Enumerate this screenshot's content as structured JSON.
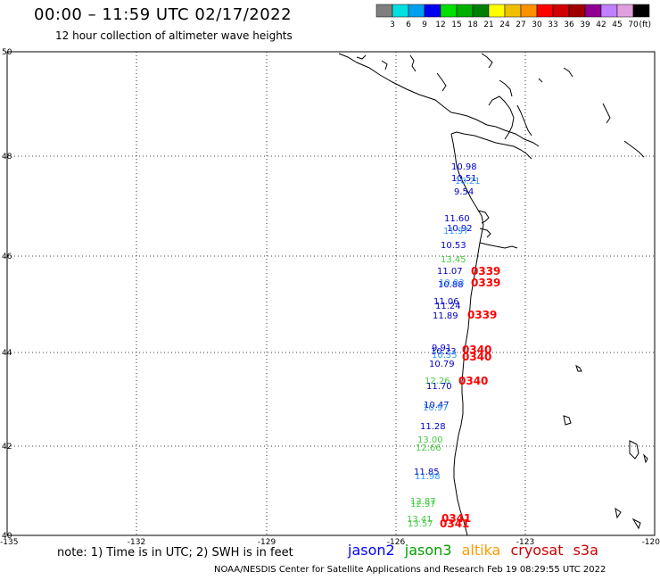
{
  "header": {
    "title": "00:00 – 11:59 UTC 02/17/2022",
    "subtitle": "12 hour collection of altimeter wave heights"
  },
  "legend": {
    "colors": [
      "#808080",
      "#00e0e0",
      "#00a0f0",
      "#0000f0",
      "#00e000",
      "#00b000",
      "#008000",
      "#ffff00",
      "#f0c000",
      "#ff9000",
      "#ff0000",
      "#d00000",
      "#a00000",
      "#900090",
      "#c080ff",
      "#e0a0e0",
      "#000000"
    ],
    "labels": [
      "3",
      "6",
      "9",
      "12",
      "15",
      "18",
      "21",
      "24",
      "27",
      "30",
      "33",
      "36",
      "39",
      "42",
      "45",
      "70"
    ],
    "unit": "(ft)"
  },
  "axes": {
    "lat_labels": [
      "50",
      "48",
      "46",
      "44",
      "42",
      "40"
    ],
    "lon_labels": [
      "-135",
      "-132",
      "-129",
      "-126",
      "-123",
      "-120"
    ]
  },
  "observations": [
    {
      "text": "10.98",
      "color": "#0000cc"
    },
    {
      "text": "10.51",
      "color": "#0000cc"
    },
    {
      "text": "10.21",
      "color": "#3399ff"
    },
    {
      "text": "9.54",
      "color": "#0000cc"
    },
    {
      "text": "11.60",
      "color": "#0000cc"
    },
    {
      "text": "10.92",
      "color": "#0000cc"
    },
    {
      "text": "11.97",
      "color": "#3399ff"
    },
    {
      "text": "10.53",
      "color": "#0000cc"
    },
    {
      "text": "13.45",
      "color": "#44cc44"
    },
    {
      "text": "11.07",
      "color": "#0000cc"
    },
    {
      "text": "10.88",
      "color": "#0000cc"
    },
    {
      "text": "10.83",
      "color": "#3399ff"
    },
    {
      "text": "11.06",
      "color": "#0000cc"
    },
    {
      "text": "11.24",
      "color": "#0000cc"
    },
    {
      "text": "11.89",
      "color": "#0000cc"
    },
    {
      "text": "9.91",
      "color": "#0000cc"
    },
    {
      "text": "10.23",
      "color": "#0000cc"
    },
    {
      "text": "10.35",
      "color": "#3399ff"
    },
    {
      "text": "10.79",
      "color": "#0000cc"
    },
    {
      "text": "12.26",
      "color": "#44cc44"
    },
    {
      "text": "11.70",
      "color": "#0000cc"
    },
    {
      "text": "10.47",
      "color": "#0000cc"
    },
    {
      "text": "10.97",
      "color": "#3399ff"
    },
    {
      "text": "11.28",
      "color": "#0000cc"
    },
    {
      "text": "13.00",
      "color": "#44cc44"
    },
    {
      "text": "12.66",
      "color": "#44cc44"
    },
    {
      "text": "11.85",
      "color": "#0000cc"
    },
    {
      "text": "11.98",
      "color": "#3399ff"
    },
    {
      "text": "12.87",
      "color": "#44cc44"
    },
    {
      "text": "12.97",
      "color": "#44cc44"
    },
    {
      "text": "13.41",
      "color": "#44cc44"
    },
    {
      "text": "13.57",
      "color": "#44cc44"
    },
    {
      "text": "0339",
      "color": "#ff0000"
    },
    {
      "text": "0339",
      "color": "#ff0000"
    },
    {
      "text": "0339",
      "color": "#ff0000"
    },
    {
      "text": "0340",
      "color": "#ff0000"
    },
    {
      "text": "0340",
      "color": "#ff0000"
    },
    {
      "text": "0340",
      "color": "#ff0000"
    },
    {
      "text": "0341",
      "color": "#ff0000"
    },
    {
      "text": "0341",
      "color": "#ff0000"
    }
  ],
  "note": "note: 1) Time is in UTC; 2) SWH is in feet",
  "satellites": [
    {
      "name": "jason2",
      "color": "#0000ff"
    },
    {
      "name": "jason3",
      "color": "#00a000"
    },
    {
      "name": "altika",
      "color": "#ff9900"
    },
    {
      "name": "cryosat",
      "color": "#cc0000"
    },
    {
      "name": "s3a",
      "color": "#cc0000"
    }
  ],
  "footer": "NOAA/NESDIS Center for Satellite Applications and Research    Feb 19 08:29:55 UTC 2022"
}
